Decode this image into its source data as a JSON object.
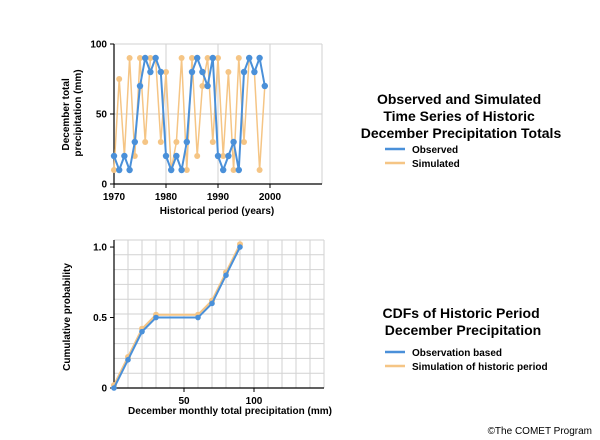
{
  "colors": {
    "observed": "#4a90d9",
    "simulated": "#f5c585",
    "grid": "#d2d2d2"
  },
  "chart_data": [
    {
      "type": "line",
      "title": "Observed and Simulated Time Series of Historic December Precipitation Totals",
      "title_lines": [
        "Observed and Simulated",
        "Time Series of Historic",
        "December Precipitation Totals"
      ],
      "xlabel": "Historical period (years)",
      "ylabel": "December total precipitation (mm)",
      "ylabel_lines": [
        "December total",
        "precipitation (mm)"
      ],
      "xlim": [
        1970,
        2010
      ],
      "ylim": [
        0,
        100
      ],
      "xticks": [
        1970,
        1980,
        1990,
        2000
      ],
      "yticks": [
        0,
        50,
        100
      ],
      "grid": true,
      "legend_position": "right",
      "series": [
        {
          "name": "Observed",
          "color": "#4a90d9",
          "x": [
            1970,
            1971,
            1972,
            1973,
            1974,
            1975,
            1976,
            1977,
            1978,
            1979,
            1980,
            1981,
            1982,
            1983,
            1984,
            1985,
            1986,
            1987,
            1988,
            1989,
            1990,
            1991,
            1992,
            1993,
            1994,
            1995,
            1996,
            1997,
            1998,
            1999
          ],
          "y": [
            20,
            10,
            20,
            10,
            30,
            70,
            90,
            80,
            90,
            80,
            20,
            10,
            20,
            10,
            30,
            80,
            90,
            80,
            70,
            90,
            20,
            10,
            20,
            30,
            10,
            80,
            90,
            80,
            90,
            70
          ]
        },
        {
          "name": "Simulated",
          "color": "#f5c585",
          "x": [
            1970,
            1971,
            1972,
            1973,
            1974,
            1975,
            1976,
            1977,
            1978,
            1979,
            1980,
            1981,
            1982,
            1983,
            1984,
            1985,
            1986,
            1987,
            1988,
            1989,
            1990,
            1991,
            1992,
            1993,
            1994,
            1995,
            1996,
            1997,
            1998,
            1999
          ],
          "y": [
            10,
            75,
            20,
            90,
            20,
            90,
            30,
            90,
            90,
            30,
            80,
            10,
            30,
            90,
            10,
            90,
            20,
            70,
            90,
            30,
            90,
            20,
            80,
            10,
            90,
            30,
            90,
            80,
            10,
            70
          ]
        }
      ]
    },
    {
      "type": "line",
      "title": "CDFs of Historic Period December Precipitation",
      "title_lines": [
        "CDFs of Historic Period",
        "December Precipitation"
      ],
      "xlabel": "December monthly total precipitation (mm)",
      "ylabel": "Cumulative probability",
      "xlim": [
        0,
        150
      ],
      "ylim": [
        0,
        1.05
      ],
      "xticks": [
        50,
        100
      ],
      "yticks": [
        0,
        0.5,
        1.0
      ],
      "ytick_labels": [
        "0",
        "0.5",
        "1.0"
      ],
      "grid": true,
      "legend_position": "right",
      "series": [
        {
          "name": "Observation based",
          "color": "#4a90d9",
          "x": [
            0,
            10,
            20,
            30,
            60,
            70,
            80,
            90
          ],
          "y": [
            0,
            0.2,
            0.4,
            0.5,
            0.5,
            0.6,
            0.8,
            1.0
          ]
        },
        {
          "name": "Simulation of historic period",
          "color": "#f5c585",
          "x": [
            0,
            10,
            20,
            30,
            60,
            70,
            80,
            90
          ],
          "y": [
            0.02,
            0.22,
            0.42,
            0.52,
            0.52,
            0.62,
            0.82,
            1.02
          ]
        }
      ]
    }
  ],
  "credit": "©The COMET Program"
}
